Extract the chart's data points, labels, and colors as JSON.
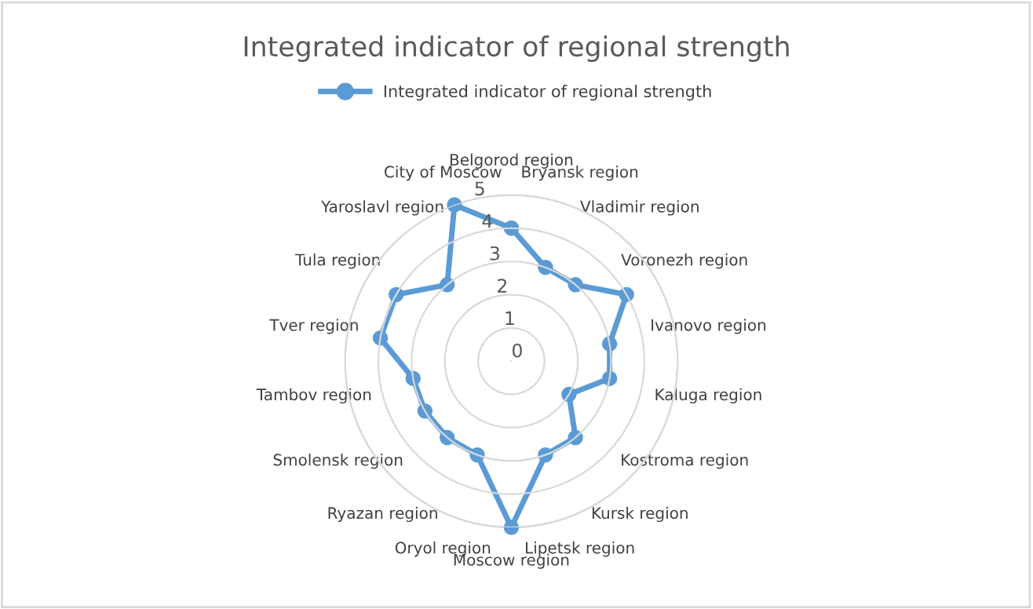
{
  "chart_data": {
    "type": "radar",
    "title": "Integrated indicator of regional strength",
    "categories": [
      "Belgorod region",
      "Bryansk region",
      "Vladimir region",
      "Voronezh region",
      "Ivanovo region",
      "Kaluga region",
      "Kostroma region",
      "Kursk region",
      "Lipetsk region",
      "Moscow region",
      "Oryol region",
      "Ryazan region",
      "Smolensk region",
      "Tambov region",
      "Tver region",
      "Tula region",
      "Yaroslavl region",
      "City of Moscow"
    ],
    "series": [
      {
        "name": "Integrated indicator of regional strength",
        "color": "#5b9bd5",
        "values": [
          4,
          3,
          3,
          4,
          3,
          3,
          2,
          3,
          3,
          5,
          3,
          3,
          3,
          3,
          4,
          4,
          3,
          5
        ]
      }
    ],
    "ylim": [
      0,
      5
    ],
    "yticks": [
      0,
      1,
      2,
      3,
      4,
      5
    ],
    "grid": "y",
    "legend": "top",
    "marker": "circle",
    "line_style": "solid"
  }
}
